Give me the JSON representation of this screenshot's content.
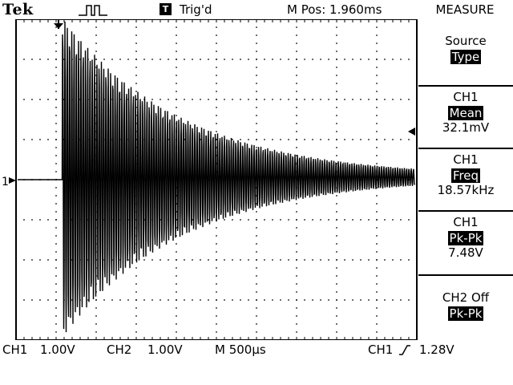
{
  "header": {
    "brand": "Tek",
    "acquire_icon": "pulse-run-icon",
    "trigger_badge": "T",
    "trigger_status": "Trig'd",
    "main_position": "M Pos: 1.960ms",
    "menu_title": "MEASURE"
  },
  "menu": {
    "items": [
      {
        "label": "Source",
        "value": "Type"
      },
      {
        "label": "CH1",
        "value": "Mean",
        "reading": "32.1mV"
      },
      {
        "label": "CH1",
        "value": "Freq",
        "reading": "18.57kHz"
      },
      {
        "label": "CH1",
        "value": "Pk-Pk",
        "reading": "7.48V"
      },
      {
        "label": "CH2 Off",
        "value": "Pk-Pk"
      }
    ]
  },
  "markers": {
    "ch1_ground": "1",
    "ch1_ground_arrow": "right-arrow-icon",
    "trigger_level_arrow": "left-arrow-icon",
    "trigger_position_arrow": "down-arrow-icon"
  },
  "status": {
    "ch1_label": "CH1",
    "ch1_scale": "1.00V",
    "ch2_label": "CH2",
    "ch2_scale": "1.00V",
    "timebase": "M 500µs",
    "trigger_source": "CH1",
    "trigger_slope_icon": "rising-edge-icon",
    "trigger_level": "1.28V"
  },
  "waveform": {
    "description_type": "damped oscillation",
    "start_time_div": 1.15,
    "peak_volts": 4.0,
    "decay_tau_div": 3.0,
    "cycles_shown": 155
  }
}
